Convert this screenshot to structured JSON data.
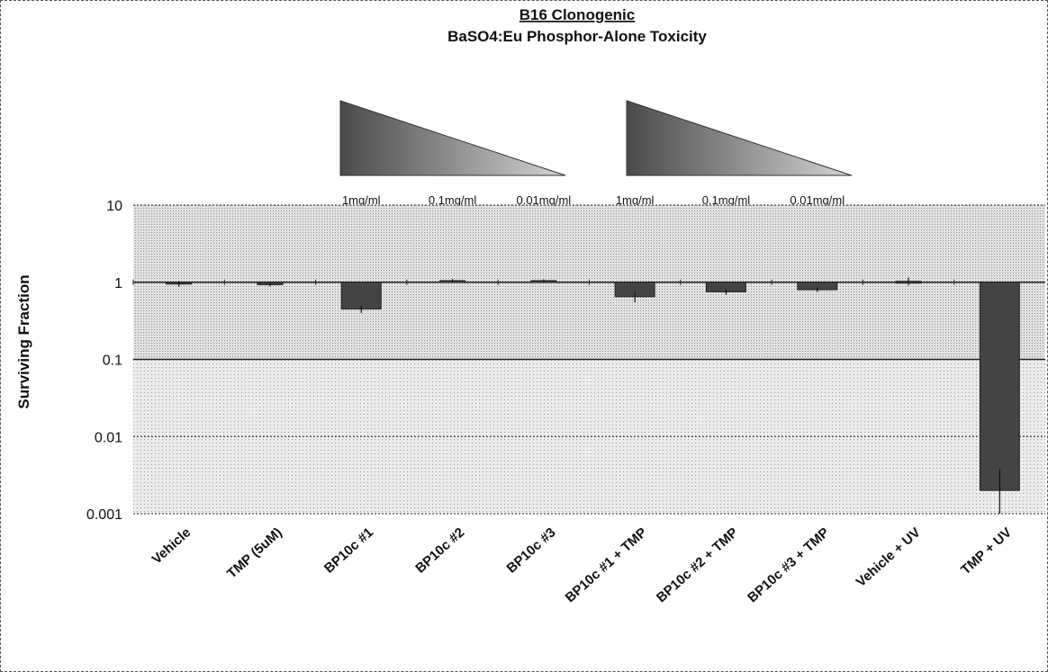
{
  "chart_data": {
    "type": "bar",
    "title": "B16 Clonogenic",
    "subtitle": "BaSO4:Eu  Phosphor-Alone Toxicity",
    "ylabel": "Surviving Fraction",
    "xlabel": "",
    "yscale": "log",
    "ylim": [
      0.001,
      10
    ],
    "yticks": [
      "10",
      "1",
      "0.1",
      "0.01",
      "0.001"
    ],
    "grid": true,
    "categories": [
      "Vehicle",
      "TMP (5uM)",
      "BP10c #1",
      "BP10c #2",
      "BP10c #3",
      "BP10c #1 + TMP",
      "BP10c #2 + TMP",
      "BP10c #3 + TMP",
      "Vehicle + UV",
      "TMP + UV"
    ],
    "values": [
      0.95,
      0.93,
      0.45,
      1.05,
      1.05,
      0.65,
      0.75,
      0.8,
      1.03,
      0.002
    ],
    "errors": [
      0.08,
      0.05,
      0.05,
      0.05,
      0.04,
      0.1,
      0.06,
      0.05,
      0.12,
      0.0018
    ],
    "concentration_labels": [
      "1mg/ml",
      "0.1mg/ml",
      "0.01mg/ml",
      "1mg/ml",
      "0.1mg/ml",
      "0.01mg/ml"
    ],
    "colors": {
      "bar": "#444444",
      "plot_bg": "#d9d9d9",
      "wedge_dark": "#4a4a4a",
      "wedge_light": "#d4d4d4"
    }
  }
}
